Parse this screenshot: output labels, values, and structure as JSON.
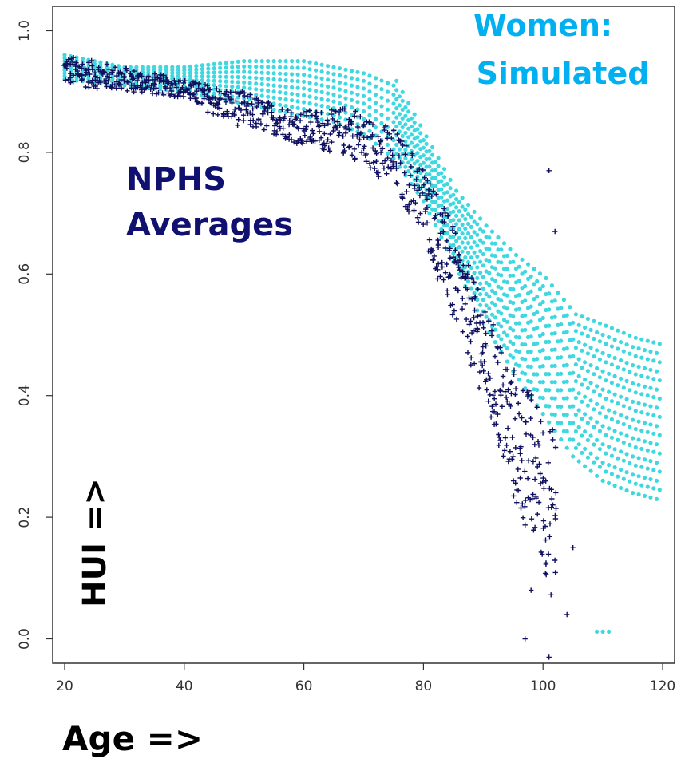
{
  "chart_data": {
    "type": "scatter",
    "xlabel": "Age =>",
    "ylabel": "HUI =>",
    "xlim": [
      18,
      122
    ],
    "ylim": [
      -0.04,
      1.04
    ],
    "x_ticks": [
      20,
      40,
      60,
      80,
      100,
      120
    ],
    "y_ticks": [
      0.0,
      0.2,
      0.4,
      0.6,
      0.8,
      1.0
    ],
    "x_tick_labels": [
      "20",
      "40",
      "60",
      "80",
      "100",
      "120"
    ],
    "y_tick_labels": [
      "0.0",
      "0.2",
      "0.4",
      "0.6",
      "0.8",
      "1.0"
    ],
    "grid": false,
    "annotations": [
      {
        "text": "Women:",
        "color": "#00b0f0"
      },
      {
        "text": "Simulated",
        "color": "#00b0f0"
      },
      {
        "text": "NPHS",
        "color": "#101070"
      },
      {
        "text": "Averages",
        "color": "#101070"
      }
    ],
    "series": [
      {
        "marker": "dot",
        "color": "#40d8e0",
        "band_x": [
          20,
          30,
          40,
          50,
          55,
          60,
          65,
          70,
          75,
          80,
          85,
          90,
          95,
          100,
          105,
          110,
          115,
          119
        ],
        "band_y_min": [
          0.92,
          0.91,
          0.9,
          0.88,
          0.87,
          0.86,
          0.85,
          0.83,
          0.79,
          0.72,
          0.62,
          0.52,
          0.44,
          0.37,
          0.3,
          0.26,
          0.24,
          0.23
        ],
        "band_y_max": [
          0.96,
          0.94,
          0.94,
          0.95,
          0.95,
          0.95,
          0.94,
          0.93,
          0.91,
          0.82,
          0.73,
          0.67,
          0.62,
          0.58,
          0.52,
          0.5,
          0.48,
          0.47
        ],
        "outliers": [
          {
            "x": 109,
            "y": 0.012
          },
          {
            "x": 110,
            "y": 0.012
          },
          {
            "x": 111,
            "y": 0.012
          }
        ]
      },
      {
        "marker": "plus",
        "color": "#101060",
        "band_x": [
          20,
          30,
          40,
          45,
          50,
          55,
          60,
          65,
          68,
          70,
          75,
          80,
          85,
          90,
          95,
          100,
          102
        ],
        "band_y_min": [
          0.91,
          0.9,
          0.89,
          0.86,
          0.84,
          0.83,
          0.81,
          0.8,
          0.79,
          0.78,
          0.74,
          0.66,
          0.52,
          0.4,
          0.22,
          0.12,
          0.05
        ],
        "band_y_max": [
          0.96,
          0.94,
          0.92,
          0.91,
          0.9,
          0.88,
          0.87,
          0.87,
          0.88,
          0.86,
          0.84,
          0.78,
          0.68,
          0.55,
          0.45,
          0.38,
          0.34
        ],
        "outliers": [
          {
            "x": 101,
            "y": 0.77
          },
          {
            "x": 102,
            "y": 0.67
          },
          {
            "x": 97,
            "y": 0.0
          },
          {
            "x": 101,
            "y": -0.03
          },
          {
            "x": 105,
            "y": 0.15
          },
          {
            "x": 104,
            "y": 0.04
          },
          {
            "x": 98,
            "y": 0.08
          }
        ]
      }
    ]
  }
}
